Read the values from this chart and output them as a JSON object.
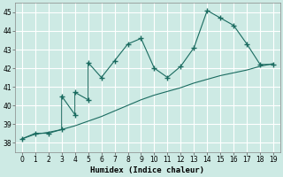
{
  "xlabel": "Humidex (Indice chaleur)",
  "bg_color": "#cdeae4",
  "grid_color": "#ffffff",
  "line_color": "#1a6b60",
  "xlim": [
    -0.5,
    19.5
  ],
  "ylim": [
    37.5,
    45.5
  ],
  "xticks": [
    0,
    1,
    2,
    3,
    4,
    5,
    6,
    7,
    8,
    9,
    10,
    11,
    12,
    13,
    14,
    15,
    16,
    17,
    18,
    19
  ],
  "yticks": [
    38,
    39,
    40,
    41,
    42,
    43,
    44,
    45
  ],
  "curve1_x": [
    0,
    1,
    2,
    3,
    3,
    4,
    4,
    5,
    5,
    6,
    7,
    8,
    9,
    10,
    11,
    12,
    13,
    14,
    15,
    16,
    17,
    18,
    19
  ],
  "curve1_y": [
    38.2,
    38.5,
    38.5,
    38.7,
    40.5,
    39.5,
    40.7,
    40.3,
    42.3,
    41.5,
    42.4,
    43.3,
    43.6,
    42.0,
    41.5,
    42.1,
    43.1,
    45.1,
    44.7,
    44.3,
    43.3,
    42.2,
    42.2
  ],
  "curve2_x": [
    0,
    1,
    2,
    3,
    4,
    5,
    6,
    7,
    8,
    9,
    10,
    11,
    12,
    13,
    14,
    15,
    16,
    17,
    18,
    19
  ],
  "curve2_y": [
    38.2,
    38.45,
    38.55,
    38.7,
    38.9,
    39.15,
    39.4,
    39.7,
    40.0,
    40.3,
    40.55,
    40.75,
    40.95,
    41.2,
    41.4,
    41.6,
    41.75,
    41.9,
    42.1,
    42.25
  ]
}
